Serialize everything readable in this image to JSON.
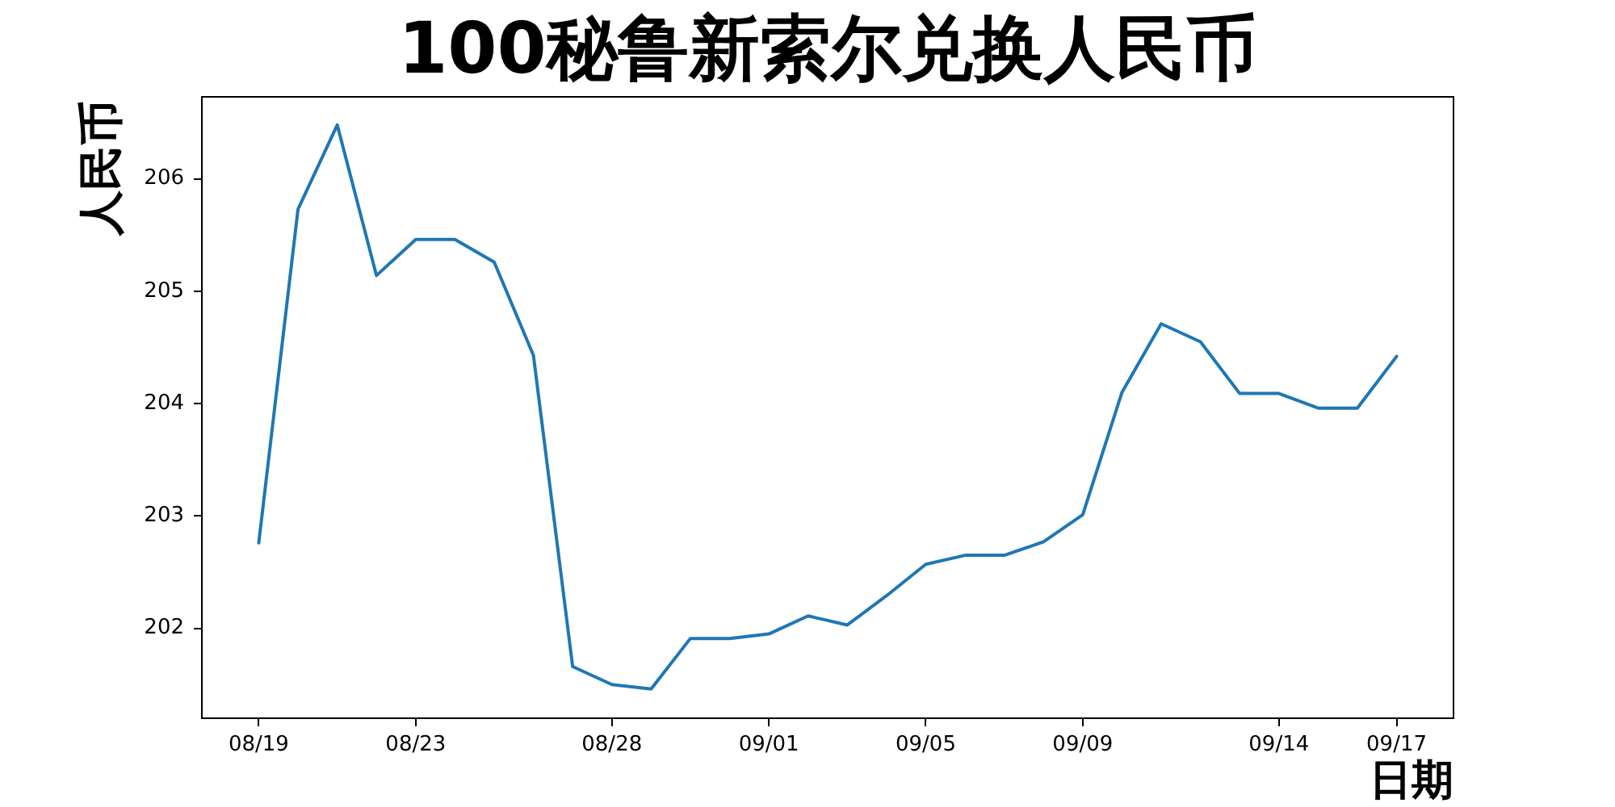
{
  "chart_data": {
    "type": "line",
    "title": "100秘鲁新索尔兑换人民币",
    "xlabel": "日期",
    "ylabel": "人民币",
    "categories": [
      "08/19",
      null,
      null,
      null,
      "08/23",
      null,
      null,
      null,
      null,
      "08/28",
      null,
      null,
      null,
      "09/01",
      null,
      null,
      null,
      "09/05",
      null,
      null,
      null,
      "09/09",
      null,
      null,
      null,
      null,
      "09/14",
      null,
      null,
      "09/17"
    ],
    "series": [
      {
        "color": "#1f77b4",
        "values": [
          202.76,
          205.73,
          206.48,
          205.14,
          205.46,
          205.46,
          205.26,
          204.43,
          201.66,
          201.5,
          201.46,
          201.91,
          201.91,
          201.95,
          202.11,
          202.03,
          202.29,
          202.57,
          202.65,
          202.65,
          202.77,
          203.01,
          204.1,
          204.71,
          204.55,
          204.09,
          204.09,
          203.96,
          203.96,
          204.42
        ]
      }
    ],
    "ylim": [
      201.2,
      206.73
    ],
    "yticks": [
      202,
      203,
      204,
      205,
      206
    ],
    "grid": false,
    "marker": "none"
  }
}
